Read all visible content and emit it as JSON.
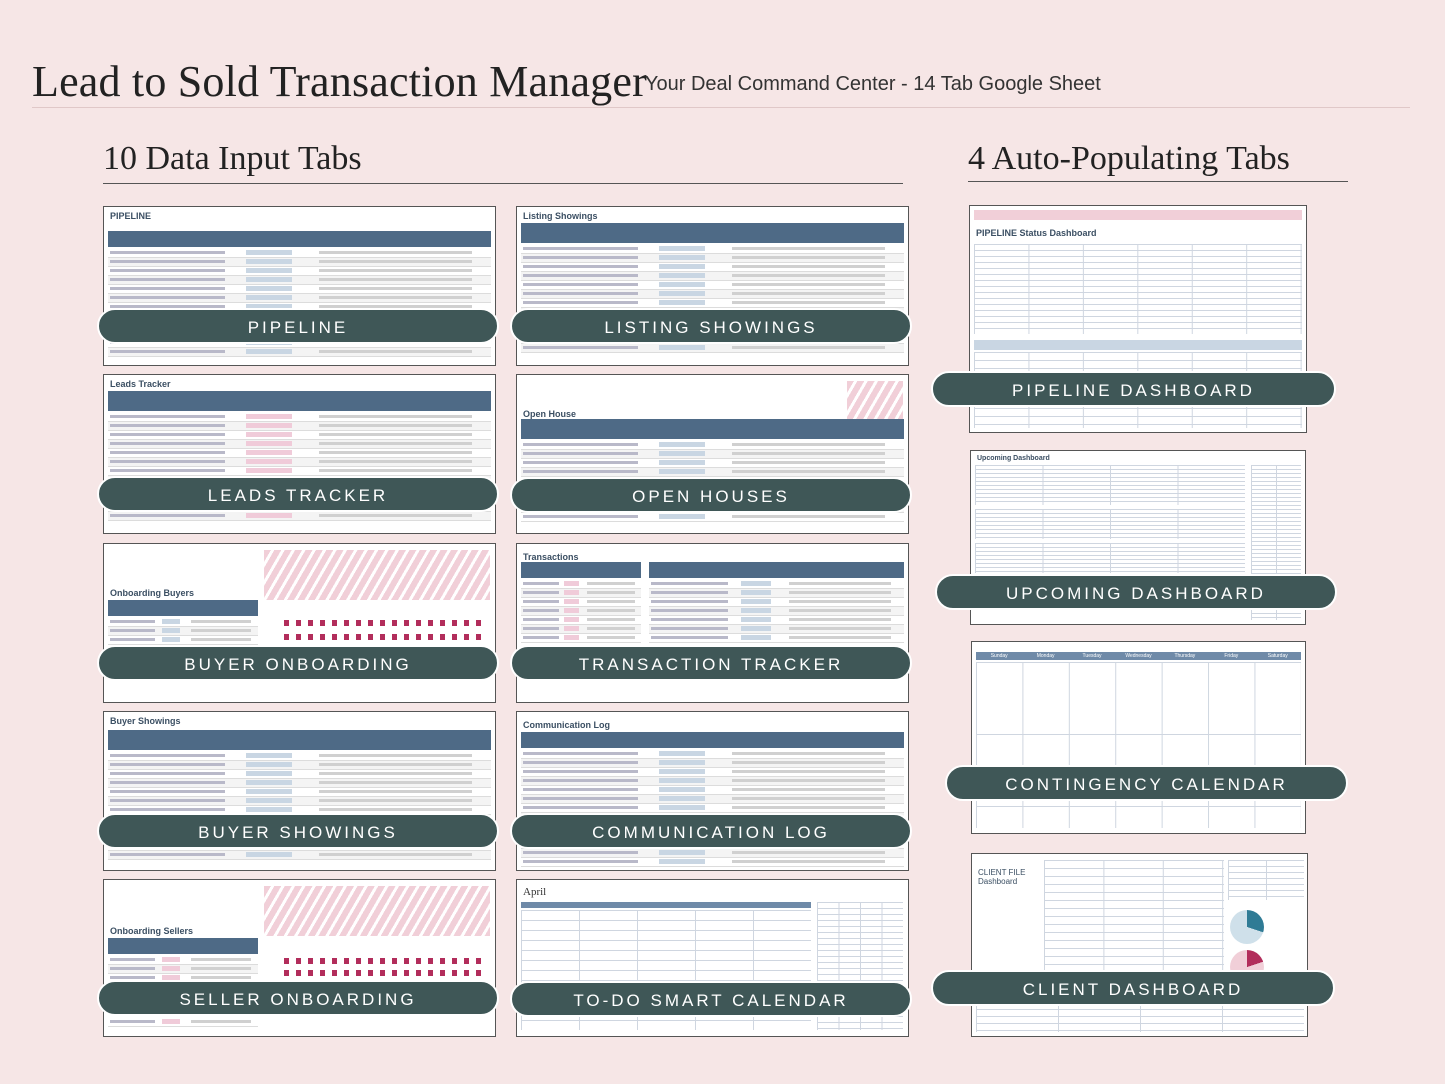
{
  "header": {
    "title": "Lead to Sold Transaction Manager",
    "subtitle": "Your Deal Command Center - 14 Tab Google Sheet"
  },
  "sections": {
    "left": "10 Data Input Tabs",
    "right": "4 Auto-Populating Tabs"
  },
  "input_tabs": [
    {
      "label": "PIPELINE",
      "sheet_title": "PIPELINE"
    },
    {
      "label": "LISTING SHOWINGS",
      "sheet_title": "Listing Showings"
    },
    {
      "label": "LEADS TRACKER",
      "sheet_title": "Leads Tracker"
    },
    {
      "label": "OPEN HOUSES",
      "sheet_title": "Open House"
    },
    {
      "label": "BUYER ONBOARDING",
      "sheet_title": "Onboarding Buyers"
    },
    {
      "label": "TRANSACTION TRACKER",
      "sheet_title": "Transactions"
    },
    {
      "label": "BUYER SHOWINGS",
      "sheet_title": "Buyer Showings"
    },
    {
      "label": "COMMUNICATION LOG",
      "sheet_title": "Communication Log"
    },
    {
      "label": "SELLER ONBOARDING",
      "sheet_title": "Onboarding Sellers"
    },
    {
      "label": "TO-DO SMART CALENDAR",
      "sheet_title": "April"
    }
  ],
  "auto_tabs": [
    {
      "label": "PIPELINE DASHBOARD",
      "sheet_title": "PIPELINE Status Dashboard"
    },
    {
      "label": "UPCOMING DASHBOARD",
      "sheet_title": "Upcoming Dashboard"
    },
    {
      "label": "CONTINGENCY CALENDAR",
      "sheet_title": ""
    },
    {
      "label": "CLIENT DASHBOARD",
      "sheet_title": "CLIENT FILE Dashboard"
    }
  ],
  "calendar_days": [
    "Sunday",
    "Monday",
    "Tuesday",
    "Wednesday",
    "Thursday",
    "Friday",
    "Saturday"
  ],
  "colors": {
    "label_bg": "#3f5757",
    "page_bg": "#f6e6e6",
    "sheet_header": "#4e6a86",
    "accent_pink": "#f1cfd8"
  }
}
